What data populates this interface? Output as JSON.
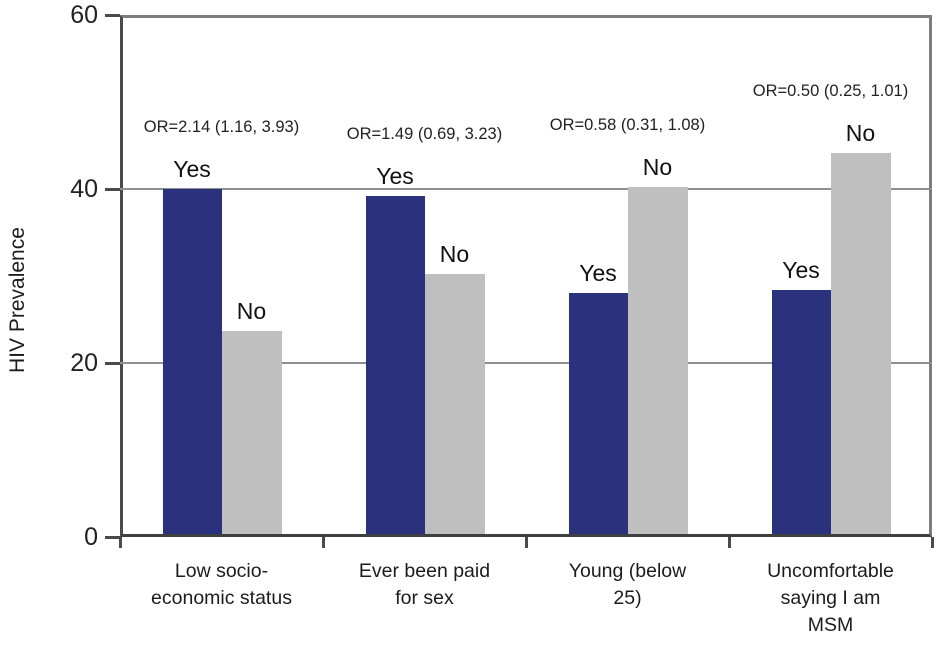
{
  "chart_data": {
    "type": "bar",
    "title": "",
    "xlabel": "",
    "ylabel": "HIV Prevalence",
    "ylim": [
      0,
      60
    ],
    "yticks": [
      "0",
      "20",
      "40",
      "60"
    ],
    "grid": true,
    "legend_position": "none",
    "categories": [
      [
        "Low socio-",
        "economic status"
      ],
      [
        "Ever been paid",
        "for sex"
      ],
      [
        "Young (below",
        "25)"
      ],
      [
        "Uncomfortable",
        "saying I am",
        "MSM"
      ]
    ],
    "series": [
      {
        "name": "Yes",
        "color": "#2a317d",
        "values": [
          40.0,
          39.2,
          28.1,
          28.4
        ]
      },
      {
        "name": "No",
        "color": "#bfbfbf",
        "values": [
          23.7,
          30.2,
          40.2,
          44.1
        ]
      }
    ],
    "annotations": [
      "OR=2.14 (1.16, 3.93)",
      "OR=1.49 (0.69, 3.23)",
      "OR=0.58 (0.31, 1.08)",
      "OR=0.50 (0.25, 1.01)"
    ]
  },
  "colors": {
    "bar_yes": "#2a317d",
    "bar_no": "#bfbfbf",
    "gridline": "#8f8f8f",
    "plot_border": "#7d7d7d",
    "axis": "#4a4a4a",
    "text": "#1c1c1c",
    "background": "#ffffff"
  }
}
